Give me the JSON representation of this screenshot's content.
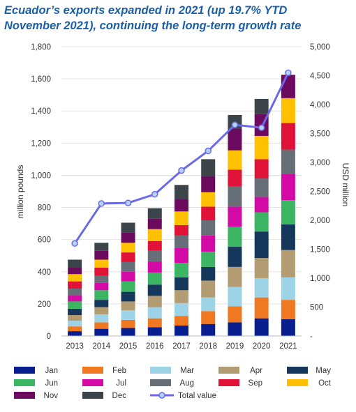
{
  "title_line1": "Ecuador’s exports expanded in 2021 (up 19.7% YTD",
  "title_line2": "November 2021), continuing the long-term growth rate",
  "chart_data": {
    "type": "bar",
    "stacked": true,
    "categories": [
      "2013",
      "2014",
      "2015",
      "2016",
      "2017",
      "2018",
      "2019",
      "2020",
      "2021"
    ],
    "ylabel": "million pounds",
    "y2label": "USD million",
    "ylim": [
      0,
      1800
    ],
    "y2lim": [
      0,
      5000
    ],
    "yticks": [
      "0",
      "200",
      "400",
      "600",
      "800",
      "1,000",
      "1,200",
      "1,400",
      "1,600",
      "1,800"
    ],
    "y2ticks": [
      "-",
      "500",
      "1,000",
      "1,500",
      "2,000",
      "2,500",
      "3,000",
      "3,500",
      "4,000",
      "4,500",
      "5,000"
    ],
    "grid": true,
    "legend_position": "bottom",
    "series": [
      {
        "name": "Jan",
        "color": "#0a1f8f",
        "values": [
          30,
          45,
          50,
          55,
          65,
          75,
          85,
          110,
          105
        ]
      },
      {
        "name": "Feb",
        "color": "#f07820",
        "values": [
          30,
          40,
          50,
          55,
          60,
          80,
          100,
          130,
          120
        ]
      },
      {
        "name": "Mar",
        "color": "#9dd3e6",
        "values": [
          35,
          50,
          60,
          70,
          80,
          85,
          120,
          120,
          140
        ]
      },
      {
        "name": "Apr",
        "color": "#b39b72",
        "values": [
          35,
          45,
          55,
          70,
          80,
          105,
          125,
          125,
          170
        ]
      },
      {
        "name": "May",
        "color": "#16375c",
        "values": [
          40,
          45,
          60,
          70,
          80,
          85,
          125,
          165,
          160
        ]
      },
      {
        "name": "Jun",
        "color": "#3cb563",
        "values": [
          45,
          60,
          65,
          75,
          90,
          95,
          125,
          120,
          150
        ]
      },
      {
        "name": "Jul",
        "color": "#d30aa5",
        "values": [
          40,
          45,
          60,
          70,
          95,
          100,
          125,
          95,
          165
        ]
      },
      {
        "name": "Aug",
        "color": "#666f77",
        "values": [
          40,
          45,
          60,
          65,
          75,
          95,
          125,
          115,
          150
        ]
      },
      {
        "name": "Sep",
        "color": "#e01238",
        "values": [
          45,
          50,
          60,
          60,
          65,
          85,
          105,
          120,
          165
        ]
      },
      {
        "name": "Oct",
        "color": "#ffc000",
        "values": [
          45,
          50,
          60,
          75,
          85,
          90,
          120,
          145,
          155
        ]
      },
      {
        "name": "Nov",
        "color": "#6b0a5e",
        "values": [
          40,
          55,
          65,
          65,
          75,
          100,
          135,
          135,
          145
        ]
      },
      {
        "name": "Dec",
        "color": "#3b4449",
        "values": [
          50,
          50,
          60,
          65,
          90,
          105,
          85,
          95,
          0
        ]
      }
    ],
    "line_series": {
      "name": "Total value",
      "axis": "right",
      "color": "#6a6ae8",
      "values": [
        1600,
        2290,
        2300,
        2450,
        2860,
        3200,
        3650,
        3600,
        4550
      ]
    }
  }
}
